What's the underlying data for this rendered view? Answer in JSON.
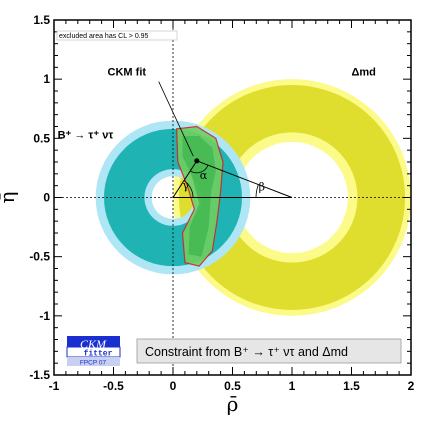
{
  "chart_data": {
    "type": "contour",
    "xlabel": "ρ̄",
    "ylabel": "η̄",
    "xlim": [
      -1,
      2
    ],
    "ylim": [
      -1.5,
      1.5
    ],
    "x_ticks": [
      "-1",
      "-0.5",
      "0",
      "0.5",
      "1",
      "1.5",
      "2"
    ],
    "y_ticks": [
      "1.5",
      "1",
      "0.5",
      "0",
      "-0.5",
      "-1",
      "-1.5"
    ],
    "legend_note": "excluded area has CL > 0.95",
    "caption": "Constraint from B⁺ → τ⁺ ντ and Δmd",
    "logo": {
      "name": "CKM",
      "sub": "fitter",
      "tag": "FPCP 07"
    },
    "annotations": {
      "ckm_fit": "CKM fit",
      "btau": "B⁺ → τ⁺ ντ",
      "dmd": "Δmd",
      "alpha": "α",
      "beta": "β",
      "gamma": "γ"
    },
    "btau_ring": {
      "center": [
        0,
        0
      ],
      "r_inner_95": 0.18,
      "r_inner_68": 0.24,
      "r_outer_68": 0.58,
      "r_outer_95": 0.65
    },
    "dmd_ring": {
      "center": [
        1,
        0
      ],
      "r_inner_95": 0.47,
      "r_inner_68": 0.55,
      "r_outer_68": 0.95,
      "r_outer_95": 1.0
    },
    "unitarity_triangle": {
      "apex": [
        0.2,
        0.31
      ],
      "base": [
        [
          0,
          0
        ],
        [
          1,
          0
        ]
      ]
    },
    "colors": {
      "btau_outer": "#aee6f5",
      "btau_inner": "#20b3b3",
      "dmd_outer": "#fcfa88",
      "dmd_inner": "#d9d820",
      "fit_fill": "#6fcf5f",
      "fit_edge": "#d1242a"
    }
  }
}
